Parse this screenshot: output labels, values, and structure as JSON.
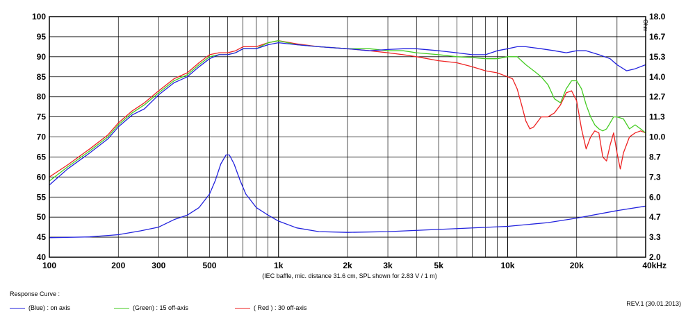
{
  "chart_data": {
    "type": "line",
    "xscale": "log",
    "xlim": [
      100,
      40000
    ],
    "ylim": [
      40,
      100
    ],
    "y2lim": [
      2.0,
      18.0
    ],
    "grid": true,
    "x_tick_labels": [
      {
        "value": 100,
        "label": "100"
      },
      {
        "value": 200,
        "label": "200"
      },
      {
        "value": 300,
        "label": "300"
      },
      {
        "value": 500,
        "label": "500"
      },
      {
        "value": 1000,
        "label": "1k"
      },
      {
        "value": 2000,
        "label": "2k"
      },
      {
        "value": 3000,
        "label": "3k"
      },
      {
        "value": 5000,
        "label": "5k"
      },
      {
        "value": 10000,
        "label": "10k"
      },
      {
        "value": 20000,
        "label": "20k"
      },
      {
        "value": 40000,
        "label": "40kHz"
      }
    ],
    "y_tick_labels": [
      "100",
      "95",
      "90",
      "85",
      "80",
      "75",
      "70",
      "65",
      "60",
      "55",
      "50",
      "45",
      "40"
    ],
    "y2_tick_labels": [
      "18.0",
      "16.7",
      "15.3",
      "14.0",
      "12.7",
      "11.3",
      "10.0",
      "8.7",
      "7.3",
      "6.0",
      "4.7",
      "3.3",
      "2.0"
    ],
    "y2_unit": "Ohm",
    "xlabel": "(IEC baffle, mic. distance 31.6 cm, SPL shown for 2.83 V / 1 m)",
    "series": [
      {
        "name": "(Blue)  : on axis",
        "color": "#2222dd",
        "x": [
          100,
          120,
          150,
          180,
          200,
          230,
          260,
          300,
          350,
          400,
          450,
          500,
          550,
          600,
          650,
          700,
          800,
          900,
          1000,
          1200,
          1500,
          2000,
          2500,
          3000,
          3500,
          4000,
          5000,
          6000,
          7000,
          8000,
          9000,
          10000,
          11000,
          12000,
          14000,
          16000,
          18000,
          20000,
          22000,
          25000,
          28000,
          30000,
          33000,
          36000,
          40000
        ],
        "y": [
          58,
          62,
          66,
          69.5,
          72.5,
          75.5,
          77,
          80.5,
          83.5,
          85,
          87.5,
          89.5,
          90.5,
          90.5,
          91,
          92,
          92,
          93,
          93.5,
          93,
          92.5,
          92,
          91.5,
          91.8,
          92,
          92,
          91.5,
          91,
          90.5,
          90.5,
          91.5,
          92,
          92.5,
          92.5,
          92,
          91.5,
          91,
          91.5,
          91.5,
          90.5,
          89.5,
          88,
          86.5,
          87,
          88
        ]
      },
      {
        "name": "(Green) : 15 off-axis",
        "color": "#44cc22",
        "x": [
          100,
          120,
          150,
          180,
          200,
          230,
          260,
          300,
          350,
          400,
          450,
          500,
          550,
          600,
          650,
          700,
          800,
          900,
          1000,
          1200,
          1500,
          2000,
          2500,
          3000,
          3500,
          4000,
          5000,
          6000,
          7000,
          8000,
          9000,
          10000,
          11000,
          12000,
          13000,
          14000,
          15000,
          16000,
          17000,
          18000,
          19000,
          20000,
          21000,
          22000,
          23000,
          24000,
          25000,
          26000,
          27000,
          28000,
          29000,
          30000,
          32000,
          34000,
          36000,
          38000,
          40000
        ],
        "y": [
          59,
          62.5,
          66.5,
          70,
          73,
          76,
          78,
          81,
          84,
          85.5,
          88,
          90,
          90.5,
          90.5,
          91,
          92,
          92,
          93.5,
          94,
          93,
          92.5,
          92,
          92,
          91.5,
          91.5,
          91,
          90.5,
          90,
          89.8,
          89.5,
          89.5,
          90,
          90,
          88,
          86.5,
          85,
          83,
          79.5,
          78.5,
          82,
          84,
          84,
          82,
          78,
          75,
          73,
          72,
          71.5,
          72,
          73.5,
          75,
          75,
          74.5,
          72,
          73,
          72,
          71
        ]
      },
      {
        "name": "( Red ) : 30 off-axis",
        "color": "#ee2222",
        "x": [
          100,
          120,
          150,
          180,
          200,
          230,
          260,
          300,
          350,
          400,
          450,
          500,
          550,
          600,
          650,
          700,
          800,
          900,
          1000,
          1200,
          1500,
          2000,
          2500,
          3000,
          3500,
          4000,
          5000,
          6000,
          7000,
          8000,
          9000,
          10000,
          10500,
          11000,
          11500,
          12000,
          12500,
          13000,
          14000,
          15000,
          16000,
          17000,
          18000,
          19000,
          20000,
          21000,
          22000,
          23000,
          24000,
          25000,
          26000,
          27000,
          28000,
          29000,
          30000,
          31000,
          32000,
          34000,
          36000,
          38000,
          40000
        ],
        "y": [
          60,
          63,
          67,
          70.5,
          73.5,
          76.5,
          78.5,
          81.5,
          84.5,
          86,
          88.5,
          90.5,
          91,
          91,
          91.5,
          92.5,
          92.5,
          93.5,
          94,
          93.2,
          92.5,
          92,
          91.5,
          91,
          90.5,
          90,
          89,
          88.5,
          87.5,
          86.5,
          86,
          85,
          84.5,
          82,
          78,
          74,
          72,
          72.5,
          75,
          75,
          76,
          78,
          81,
          81.5,
          79,
          72,
          67,
          70,
          71.5,
          71,
          65,
          64,
          68,
          71,
          66,
          62,
          66,
          70,
          71,
          71.5,
          71
        ]
      },
      {
        "name": "impedance",
        "color": "#2222dd",
        "axis": "right",
        "x": [
          100,
          150,
          200,
          250,
          300,
          350,
          400,
          450,
          500,
          530,
          560,
          590,
          610,
          640,
          680,
          720,
          800,
          900,
          1000,
          1200,
          1500,
          2000,
          3000,
          5000,
          10000,
          15000,
          20000,
          30000,
          40000
        ],
        "y": [
          3.3,
          3.35,
          3.5,
          3.75,
          4.0,
          4.5,
          4.8,
          5.3,
          6.2,
          7.1,
          8.2,
          8.8,
          8.8,
          8.2,
          7.1,
          6.2,
          5.3,
          4.8,
          4.4,
          3.95,
          3.7,
          3.65,
          3.7,
          3.85,
          4.05,
          4.3,
          4.6,
          5.1,
          5.4
        ]
      }
    ]
  },
  "legend": {
    "title": "Response Curve :",
    "items": [
      {
        "label": "(Blue)  : on axis",
        "color": "#2222dd"
      },
      {
        "label": "(Green) : 15 off-axis",
        "color": "#44cc22"
      },
      {
        "label": "( Red ) : 30 off-axis",
        "color": "#ee2222"
      }
    ]
  },
  "revision": "REV.1 (30.01.2013)"
}
